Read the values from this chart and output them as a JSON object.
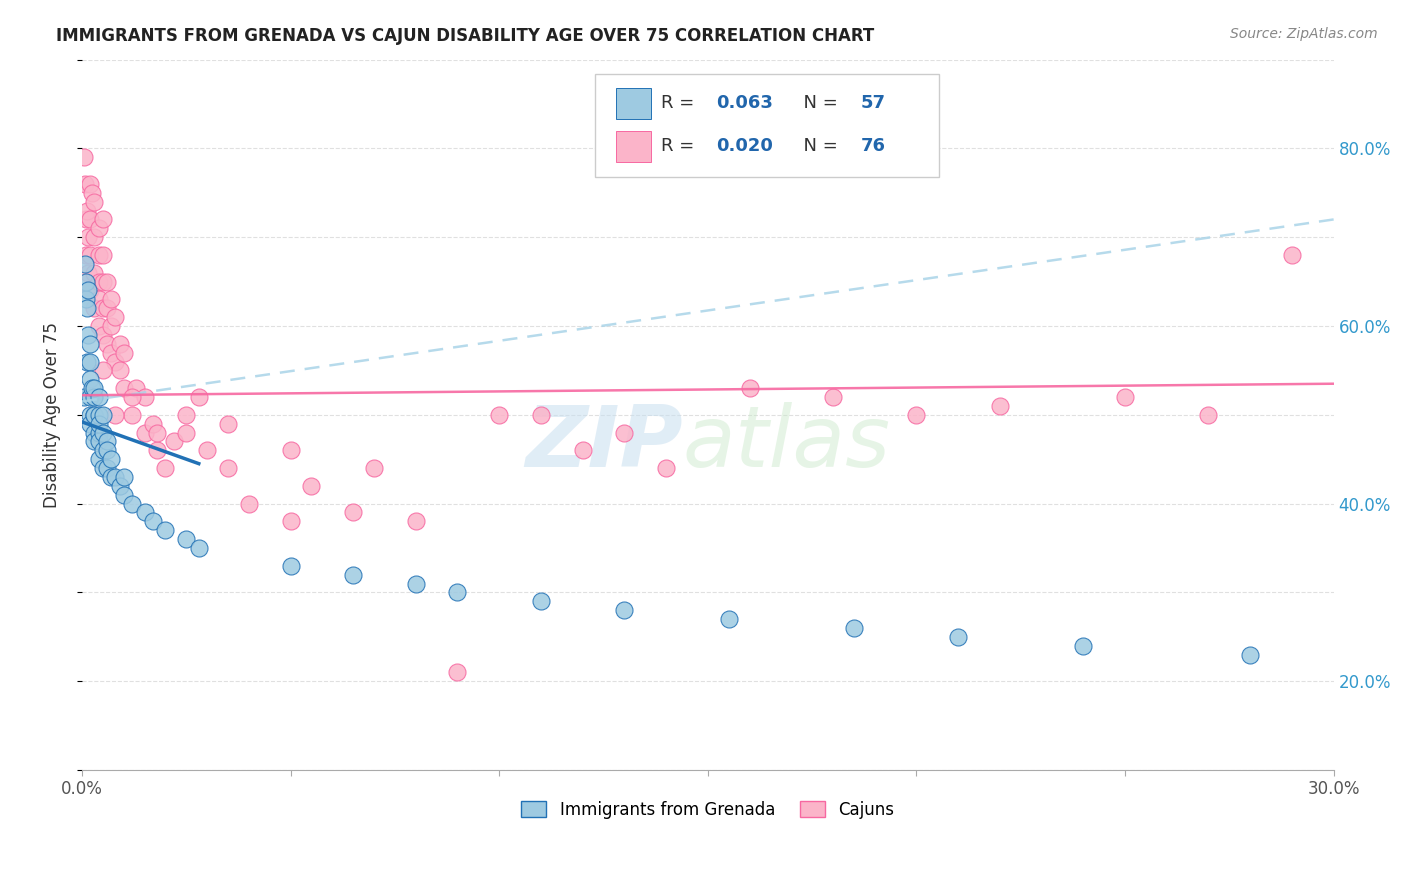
{
  "title": "IMMIGRANTS FROM GRENADA VS CAJUN DISABILITY AGE OVER 75 CORRELATION CHART",
  "source": "Source: ZipAtlas.com",
  "ylabel": "Disability Age Over 75",
  "legend_label1": "Immigrants from Grenada",
  "legend_label2": "Cajuns",
  "watermark_zip": "ZIP",
  "watermark_atlas": "atlas",
  "color_blue": "#9ecae1",
  "color_pink": "#fbb4c9",
  "color_blue_dark": "#2171b5",
  "color_pink_dark": "#f768a1",
  "color_trendline_blue": "#2171b5",
  "color_trendline_pink_dashed": "#aad4e8",
  "color_trendline_pink_solid": "#f768a1",
  "grenada_x": [
    0.0005,
    0.0008,
    0.001,
    0.001,
    0.0012,
    0.0013,
    0.0015,
    0.0015,
    0.002,
    0.002,
    0.002,
    0.002,
    0.002,
    0.002,
    0.0025,
    0.003,
    0.003,
    0.003,
    0.003,
    0.003,
    0.003,
    0.004,
    0.004,
    0.004,
    0.004,
    0.004,
    0.004,
    0.005,
    0.005,
    0.005,
    0.005,
    0.006,
    0.006,
    0.006,
    0.007,
    0.007,
    0.008,
    0.009,
    0.01,
    0.01,
    0.012,
    0.015,
    0.017,
    0.02,
    0.025,
    0.028,
    0.05,
    0.065,
    0.08,
    0.09,
    0.11,
    0.13,
    0.155,
    0.185,
    0.21,
    0.24,
    0.28
  ],
  "grenada_y": [
    0.52,
    0.67,
    0.63,
    0.65,
    0.56,
    0.62,
    0.59,
    0.64,
    0.56,
    0.58,
    0.5,
    0.52,
    0.54,
    0.49,
    0.53,
    0.5,
    0.52,
    0.48,
    0.5,
    0.47,
    0.53,
    0.48,
    0.5,
    0.52,
    0.45,
    0.47,
    0.49,
    0.46,
    0.48,
    0.5,
    0.44,
    0.47,
    0.44,
    0.46,
    0.43,
    0.45,
    0.43,
    0.42,
    0.41,
    0.43,
    0.4,
    0.39,
    0.38,
    0.37,
    0.36,
    0.35,
    0.33,
    0.32,
    0.31,
    0.3,
    0.29,
    0.28,
    0.27,
    0.26,
    0.25,
    0.24,
    0.23
  ],
  "cajun_x": [
    0.0005,
    0.0008,
    0.001,
    0.001,
    0.0012,
    0.0015,
    0.0015,
    0.002,
    0.002,
    0.002,
    0.002,
    0.0025,
    0.003,
    0.003,
    0.003,
    0.003,
    0.004,
    0.004,
    0.004,
    0.004,
    0.004,
    0.005,
    0.005,
    0.005,
    0.005,
    0.005,
    0.006,
    0.006,
    0.006,
    0.007,
    0.007,
    0.007,
    0.008,
    0.008,
    0.009,
    0.009,
    0.01,
    0.01,
    0.012,
    0.013,
    0.015,
    0.015,
    0.017,
    0.018,
    0.02,
    0.022,
    0.025,
    0.028,
    0.03,
    0.035,
    0.04,
    0.05,
    0.055,
    0.065,
    0.08,
    0.1,
    0.12,
    0.14,
    0.16,
    0.18,
    0.2,
    0.22,
    0.25,
    0.27,
    0.29,
    0.005,
    0.008,
    0.012,
    0.018,
    0.025,
    0.035,
    0.05,
    0.07,
    0.09,
    0.11,
    0.13
  ],
  "cajun_y": [
    0.79,
    0.76,
    0.72,
    0.68,
    0.73,
    0.7,
    0.66,
    0.76,
    0.68,
    0.72,
    0.64,
    0.75,
    0.66,
    0.7,
    0.62,
    0.74,
    0.65,
    0.68,
    0.71,
    0.6,
    0.63,
    0.62,
    0.65,
    0.59,
    0.68,
    0.72,
    0.62,
    0.58,
    0.65,
    0.6,
    0.63,
    0.57,
    0.61,
    0.56,
    0.55,
    0.58,
    0.53,
    0.57,
    0.5,
    0.53,
    0.48,
    0.52,
    0.49,
    0.46,
    0.44,
    0.47,
    0.48,
    0.52,
    0.46,
    0.44,
    0.4,
    0.38,
    0.42,
    0.39,
    0.38,
    0.5,
    0.46,
    0.44,
    0.53,
    0.52,
    0.5,
    0.51,
    0.52,
    0.5,
    0.68,
    0.55,
    0.5,
    0.52,
    0.48,
    0.5,
    0.49,
    0.46,
    0.44,
    0.21,
    0.5,
    0.48
  ],
  "xlim": [
    0.0,
    0.3
  ],
  "ylim": [
    0.1,
    0.9
  ],
  "background_color": "#ffffff",
  "grid_color": "#e0e0e0"
}
